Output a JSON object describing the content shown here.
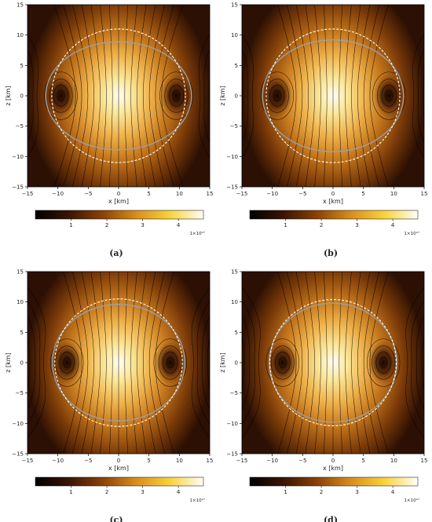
{
  "chart_data": [
    {
      "type": "heatmap",
      "panel_label": "(a)",
      "xlabel": "x [km]",
      "ylabel": "z [km]",
      "xlim": [
        -15,
        15
      ],
      "ylim": [
        -15,
        15
      ],
      "x_ticks": [
        -15,
        -10,
        -5,
        0,
        5,
        10,
        15
      ],
      "y_ticks": [
        -15,
        -10,
        -5,
        0,
        5,
        10,
        15
      ],
      "colorbar": {
        "min": 0,
        "max": 4.7,
        "ticks": [
          1,
          2,
          3,
          4
        ],
        "multiplier": "1×10²⁷"
      },
      "field_vortex_x": [
        -9.5,
        9.5
      ],
      "grey_ellipse_semi_axes": [
        12,
        8.9
      ],
      "white_circle_radius": 11,
      "grid": false
    },
    {
      "type": "heatmap",
      "panel_label": "(b)",
      "xlabel": "x [km]",
      "ylabel": "z [km]",
      "xlim": [
        -15,
        15
      ],
      "ylim": [
        -15,
        15
      ],
      "x_ticks": [
        -15,
        -10,
        -5,
        0,
        5,
        10,
        15
      ],
      "y_ticks": [
        -15,
        -10,
        -5,
        0,
        5,
        10,
        15
      ],
      "colorbar": {
        "min": 0,
        "max": 4.7,
        "ticks": [
          1,
          2,
          3,
          4
        ],
        "multiplier": "1×10²⁷"
      },
      "field_vortex_x": [
        -9.2,
        9.2
      ],
      "grey_ellipse_semi_axes": [
        11.6,
        9.2
      ],
      "white_circle_radius": 11,
      "grid": false
    },
    {
      "type": "heatmap",
      "panel_label": "(c)",
      "xlabel": "x [km]",
      "ylabel": "z [km]",
      "xlim": [
        -15,
        15
      ],
      "ylim": [
        -15,
        15
      ],
      "x_ticks": [
        -15,
        -10,
        -5,
        0,
        5,
        10,
        15
      ],
      "y_ticks": [
        -15,
        -10,
        -5,
        0,
        5,
        10,
        15
      ],
      "colorbar": {
        "min": 0,
        "max": 4.7,
        "ticks": [
          1,
          2,
          3,
          4
        ],
        "multiplier": "1×10²⁷"
      },
      "field_vortex_x": [
        -8.5,
        8.5
      ],
      "grey_ellipse_semi_axes": [
        10.9,
        9.6
      ],
      "white_circle_radius": 10.5,
      "grid": false
    },
    {
      "type": "heatmap",
      "panel_label": "(d)",
      "xlabel": "x [km]",
      "ylabel": "z [km]",
      "xlim": [
        -15,
        15
      ],
      "ylim": [
        -15,
        15
      ],
      "x_ticks": [
        -15,
        -10,
        -5,
        0,
        5,
        10,
        15
      ],
      "y_ticks": [
        -15,
        -10,
        -5,
        0,
        5,
        10,
        15
      ],
      "colorbar": {
        "min": 0,
        "max": 4.7,
        "ticks": [
          1,
          2,
          3,
          4
        ],
        "multiplier": "1×10²⁷"
      },
      "field_vortex_x": [
        -8.3,
        8.3
      ],
      "grey_ellipse_semi_axes": [
        10.5,
        9.8
      ],
      "white_circle_radius": 10.4,
      "grid": false
    }
  ],
  "colors": {
    "cmap": [
      "#000000",
      "#3a1404",
      "#8a4206",
      "#d88e1c",
      "#f8d23a",
      "#fffef8"
    ],
    "field_line": "#000000",
    "ellipse": "#9aa0a6",
    "circle": "#ffffff"
  }
}
